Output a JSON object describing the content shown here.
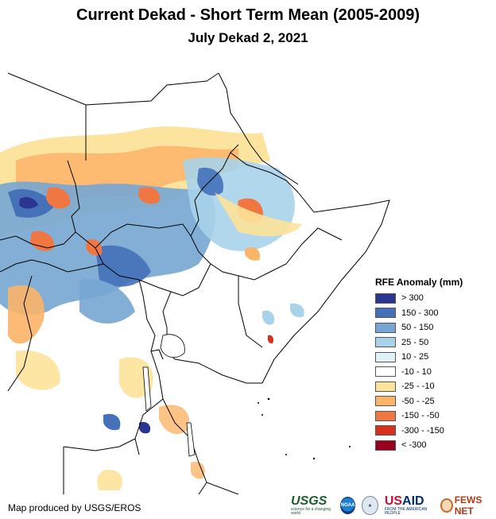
{
  "header": {
    "title": "Current Dekad - Short Term Mean (2005-2009)",
    "subtitle": "July Dekad 2, 2021"
  },
  "legend": {
    "title": "RFE Anomaly (mm)",
    "items": [
      {
        "label": "> 300",
        "color": "#2a3590"
      },
      {
        "label": "150 - 300",
        "color": "#4471b8"
      },
      {
        "label": "50 - 150",
        "color": "#76a6d3"
      },
      {
        "label": "25 - 50",
        "color": "#a9d3ea"
      },
      {
        "label": "10 - 25",
        "color": "#e1f2f8"
      },
      {
        "label": "-10 - 10",
        "color": "#ffffff"
      },
      {
        "label": "-25 - -10",
        "color": "#fde399"
      },
      {
        "label": "-50 - -25",
        "color": "#fbb468"
      },
      {
        "label": "-150 - -50",
        "color": "#f07642"
      },
      {
        "label": "-300 - -150",
        "color": "#d7301f"
      },
      {
        "label": "< -300",
        "color": "#99001e"
      }
    ]
  },
  "footer": {
    "credit": "Map produced by USGS/EROS",
    "logos": {
      "usgs": "USGS",
      "usgs_tagline": "science for a changing world",
      "noaa": "NOAA",
      "usaid_us": "US",
      "usaid_aid": "AID",
      "usaid_tagline": "FROM THE AMERICAN PEOPLE",
      "fews": "FEWS NET"
    }
  }
}
